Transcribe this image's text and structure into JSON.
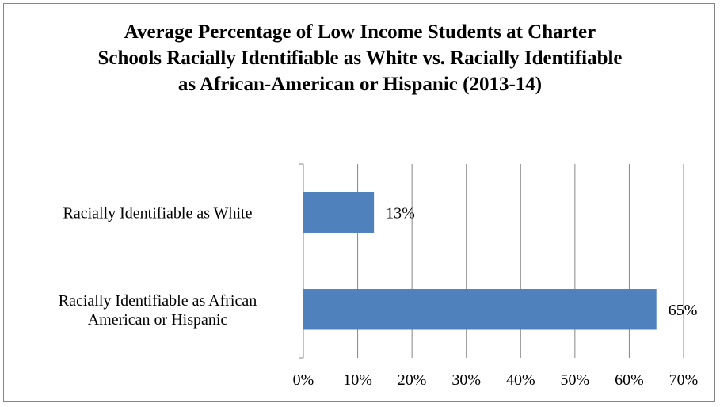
{
  "chart_data": {
    "type": "bar",
    "orientation": "horizontal",
    "title": "Average Percentage of Low Income Students at Charter Schools Racially Identifiable as White vs. Racially Identifiable as African-American or Hispanic (2013-14)",
    "categories": [
      [
        "Racially Identifiable as White"
      ],
      [
        "Racially Identifiable as African",
        "American or Hispanic"
      ]
    ],
    "values": [
      13,
      65
    ],
    "data_labels": [
      "13%",
      "65%"
    ],
    "xlim": [
      0,
      70
    ],
    "x_ticks": [
      "0%",
      "10%",
      "20%",
      "30%",
      "40%",
      "50%",
      "60%",
      "70%"
    ],
    "grid": "vertical",
    "legend": "none",
    "bar_color": "#4f81bd",
    "grid_color": "#868686"
  }
}
